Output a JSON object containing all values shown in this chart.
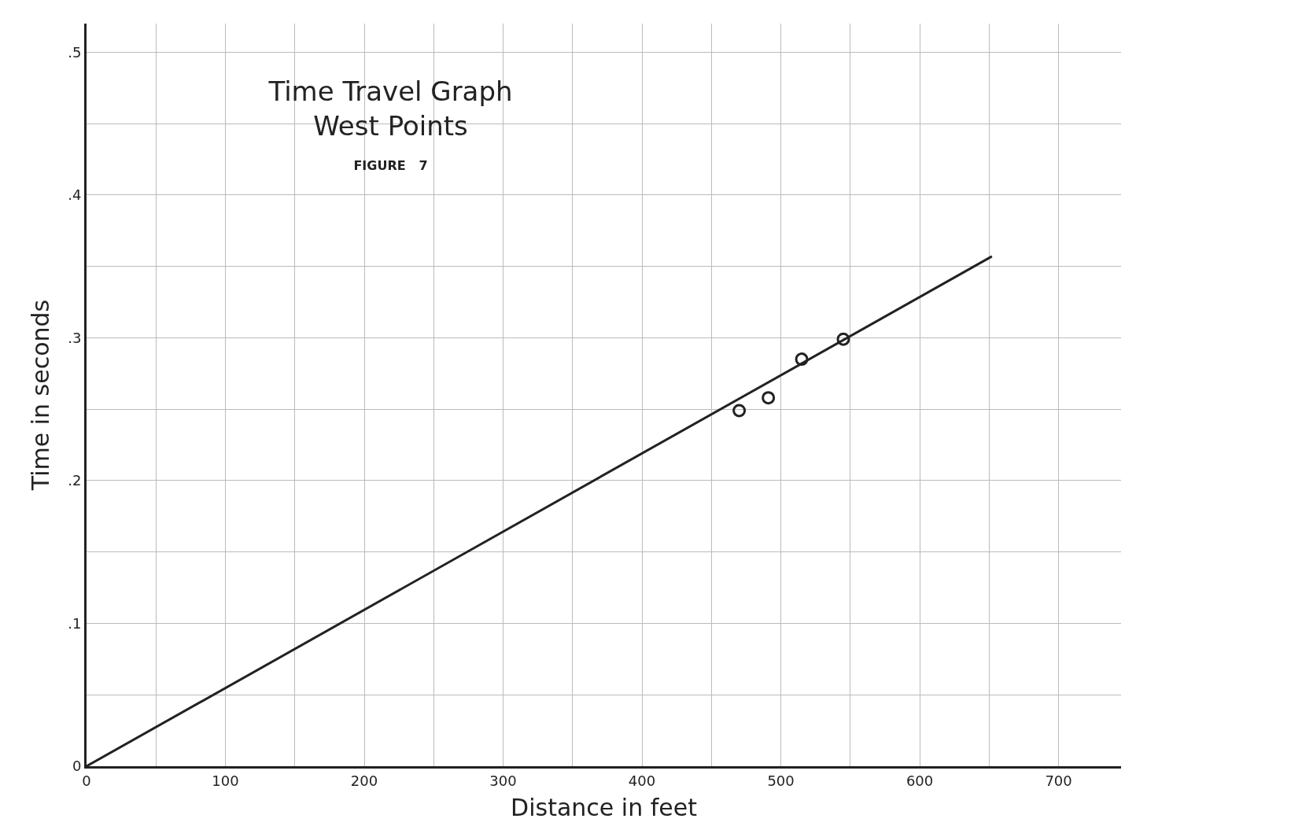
{
  "chart_data": {
    "type": "scatter",
    "title": "Time Travel Graph\nWest Points",
    "subtitle": "FIGURE   7",
    "xlabel": "Distance in feet",
    "ylabel": "Time in seconds",
    "xlim": [
      0,
      745
    ],
    "ylim": [
      0,
      0.52
    ],
    "xticks": [
      0,
      {
        "value": 50,
        "label": null
      },
      100,
      {
        "value": 150,
        "label": null
      },
      200,
      {
        "value": 250,
        "label": null
      },
      300,
      {
        "value": 350,
        "label": null
      },
      400,
      {
        "value": 450,
        "label": null
      },
      500,
      {
        "value": 550,
        "label": null
      },
      600,
      {
        "value": 650,
        "label": null
      },
      700
    ],
    "yticks": [
      {
        "value": 0,
        "label": "0"
      },
      {
        "value": 0.05,
        "label": null
      },
      {
        "value": 0.1,
        "label": ".1"
      },
      {
        "value": 0.15,
        "label": null
      },
      {
        "value": 0.2,
        "label": ".2"
      },
      {
        "value": 0.25,
        "label": null
      },
      {
        "value": 0.3,
        "label": ".3"
      },
      {
        "value": 0.35,
        "label": null
      },
      {
        "value": 0.4,
        "label": ".4"
      },
      {
        "value": 0.45,
        "label": null
      },
      {
        "value": 0.5,
        "label": ".5"
      }
    ],
    "grid": true,
    "marker": "circle",
    "series": [
      {
        "color": "#222222",
        "x": [
          470,
          491,
          515,
          545
        ],
        "values": [
          0.249,
          0.258,
          0.285,
          0.299
        ]
      },
      {
        "type": "line",
        "color": "#222222",
        "x": [
          0,
          652
        ],
        "values": [
          0,
          0.357
        ],
        "marker": "none"
      }
    ]
  }
}
